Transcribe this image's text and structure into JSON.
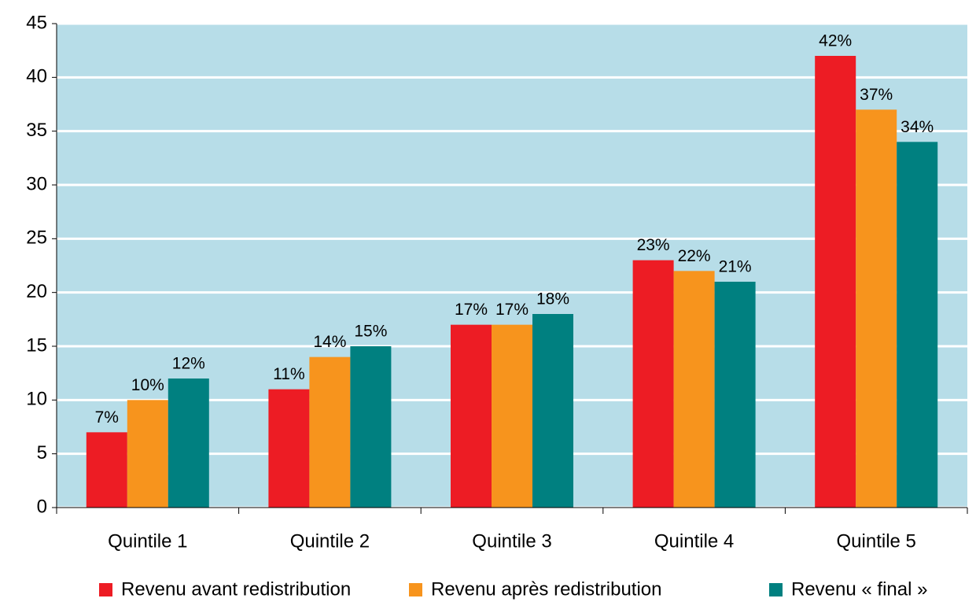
{
  "chart_data": {
    "type": "bar",
    "categories": [
      "Quintile 1",
      "Quintile 2",
      "Quintile 3",
      "Quintile 4",
      "Quintile 5"
    ],
    "series": [
      {
        "name": "Revenu avant redistribution",
        "color": "#ed1c24",
        "values": [
          7,
          11,
          17,
          23,
          42
        ],
        "value_labels": [
          "7%",
          "11%",
          "17%",
          "23%",
          "42%"
        ]
      },
      {
        "name": "Revenu après redistribution",
        "color": "#f7941d",
        "values": [
          10,
          14,
          17,
          22,
          37
        ],
        "value_labels": [
          "10%",
          "14%",
          "17%",
          "22%",
          "37%"
        ]
      },
      {
        "name": "Revenu « final »",
        "color": "#008080",
        "values": [
          12,
          15,
          18,
          21,
          34
        ],
        "value_labels": [
          "12%",
          "15%",
          "18%",
          "21%",
          "34%"
        ]
      }
    ],
    "ylim": [
      0,
      45
    ],
    "yticks": [
      0,
      5,
      10,
      15,
      20,
      25,
      30,
      35,
      40,
      45
    ],
    "grid": true,
    "legend": "bottom"
  }
}
